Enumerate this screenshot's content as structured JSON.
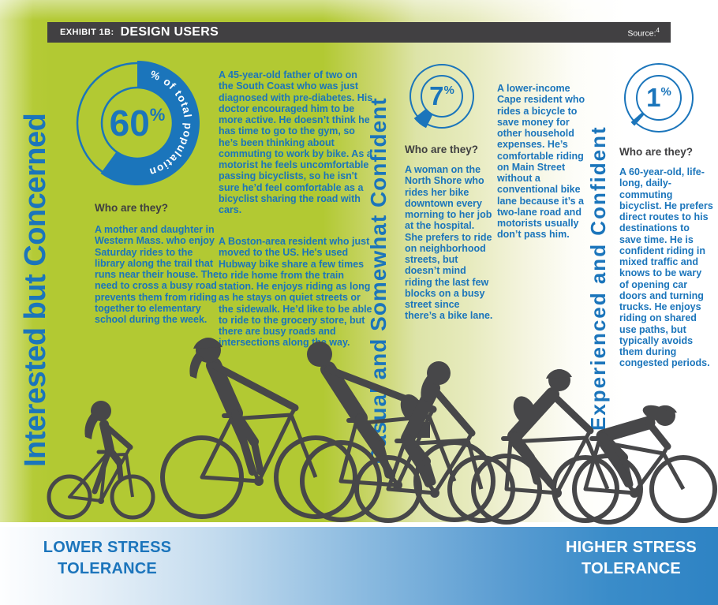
{
  "header": {
    "label": "EXHIBIT 1B:",
    "title": "DESIGN USERS",
    "source_label": "Source:",
    "source_sup": "4"
  },
  "colors": {
    "accent_blue": "#1b75bb",
    "lime_green": "#b2c933",
    "pale_green": "#dde4a8",
    "header_gray": "#414042",
    "silhouette_gray": "#474749",
    "footer_blue": "#2e83c4"
  },
  "chart_data": [
    {
      "type": "pie",
      "label": "Interested but Concerned",
      "value": 60,
      "unit": "%",
      "caption": "% of total population",
      "start_deg": 0
    },
    {
      "type": "pie",
      "label": "Casual and Somewhat Confident",
      "value": 7,
      "unit": "%",
      "wedge_center_deg": 219
    },
    {
      "type": "pie",
      "label": "Experienced and Confident",
      "value": 1,
      "unit": "%",
      "wedge_center_deg": 225
    }
  ],
  "sections": [
    {
      "title": "Interested but Concerned",
      "who": "Who are they?",
      "personas": [
        "A mother and daughter in Western Mass. who enjoy Saturday rides to the library along the trail that runs near their house. The need to cross a busy road prevents them from riding together to elementary school during the week.",
        "A 45-year-old father of two on the South Coast who was just diagnosed with pre-diabetes. His doctor encouraged him to be more active. He doesn’t think he has time to go to the gym, so he’s been thinking about commuting to work by bike. As a motorist he feels uncomfortable passing bicyclists, so he isn't sure he’d feel comfortable as a bicyclist sharing the road with cars.",
        "A Boston-area resident who just moved to the US. He's used Hubway bike share a few times to ride home from the train station. He enjoys riding as long as he stays on quiet streets or the sidewalk. He’d like to be able to ride to the grocery store, but there are busy roads and intersections along the way."
      ]
    },
    {
      "title": "Casual and Somewhat Confident",
      "who": "Who are they?",
      "personas": [
        "A woman on the North Shore who rides her bike downtown every morning to her job at the hospital. She prefers to ride on neighborhood streets, but doesn’t mind riding the last few blocks on a busy street since there’s a bike lane.",
        "A lower-income Cape resident who rides a bicycle to save money for other household expenses. He’s comfortable riding on Main Street without a conventional bike lane because it’s a two-lane road and motorists usually don’t pass him."
      ]
    },
    {
      "title": "Experienced and Confident",
      "who": "Who are they?",
      "personas": [
        "A 60-year-old, life-long, daily-commuting bicyclist. He prefers direct routes to his destinations to save time. He is confident riding in mixed traffic and knows to be wary of opening car doors and turning trucks. He enjoys riding on shared use paths, but typically avoids them during congested periods."
      ]
    }
  ],
  "footer": {
    "left_line1": "LOWER STRESS",
    "left_line2": "TOLERANCE",
    "right_line1": "HIGHER STRESS",
    "right_line2": "TOLERANCE"
  }
}
